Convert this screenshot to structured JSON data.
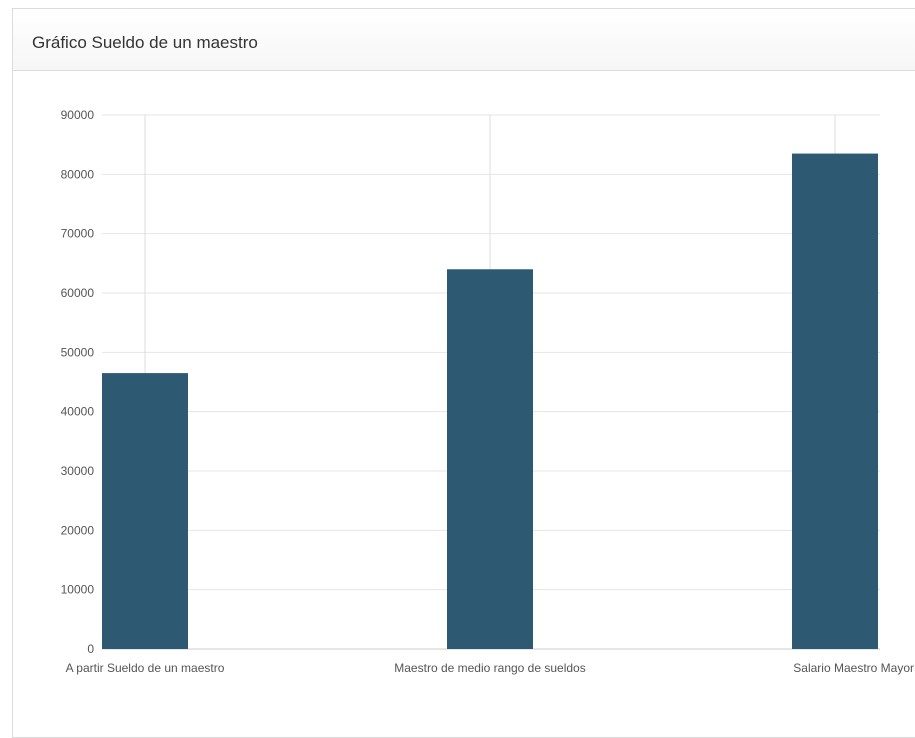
{
  "panel": {
    "title": "Gráfico Sueldo de un maestro"
  },
  "colors": {
    "bar": "#2d5a72",
    "grid": "#e5e5e5",
    "axis": "#cccccc"
  },
  "chart_data": {
    "type": "bar",
    "categories": [
      "A partir Sueldo de un maestro",
      "Maestro de medio rango de sueldos",
      "Salario Maestro Mayor"
    ],
    "values": [
      46500,
      64000,
      83500
    ],
    "ylim": [
      0,
      90000
    ],
    "yticks": [
      "0",
      "10000",
      "20000",
      "30000",
      "40000",
      "50000",
      "60000",
      "70000",
      "80000",
      "90000"
    ],
    "grid": true,
    "legend": "none"
  }
}
